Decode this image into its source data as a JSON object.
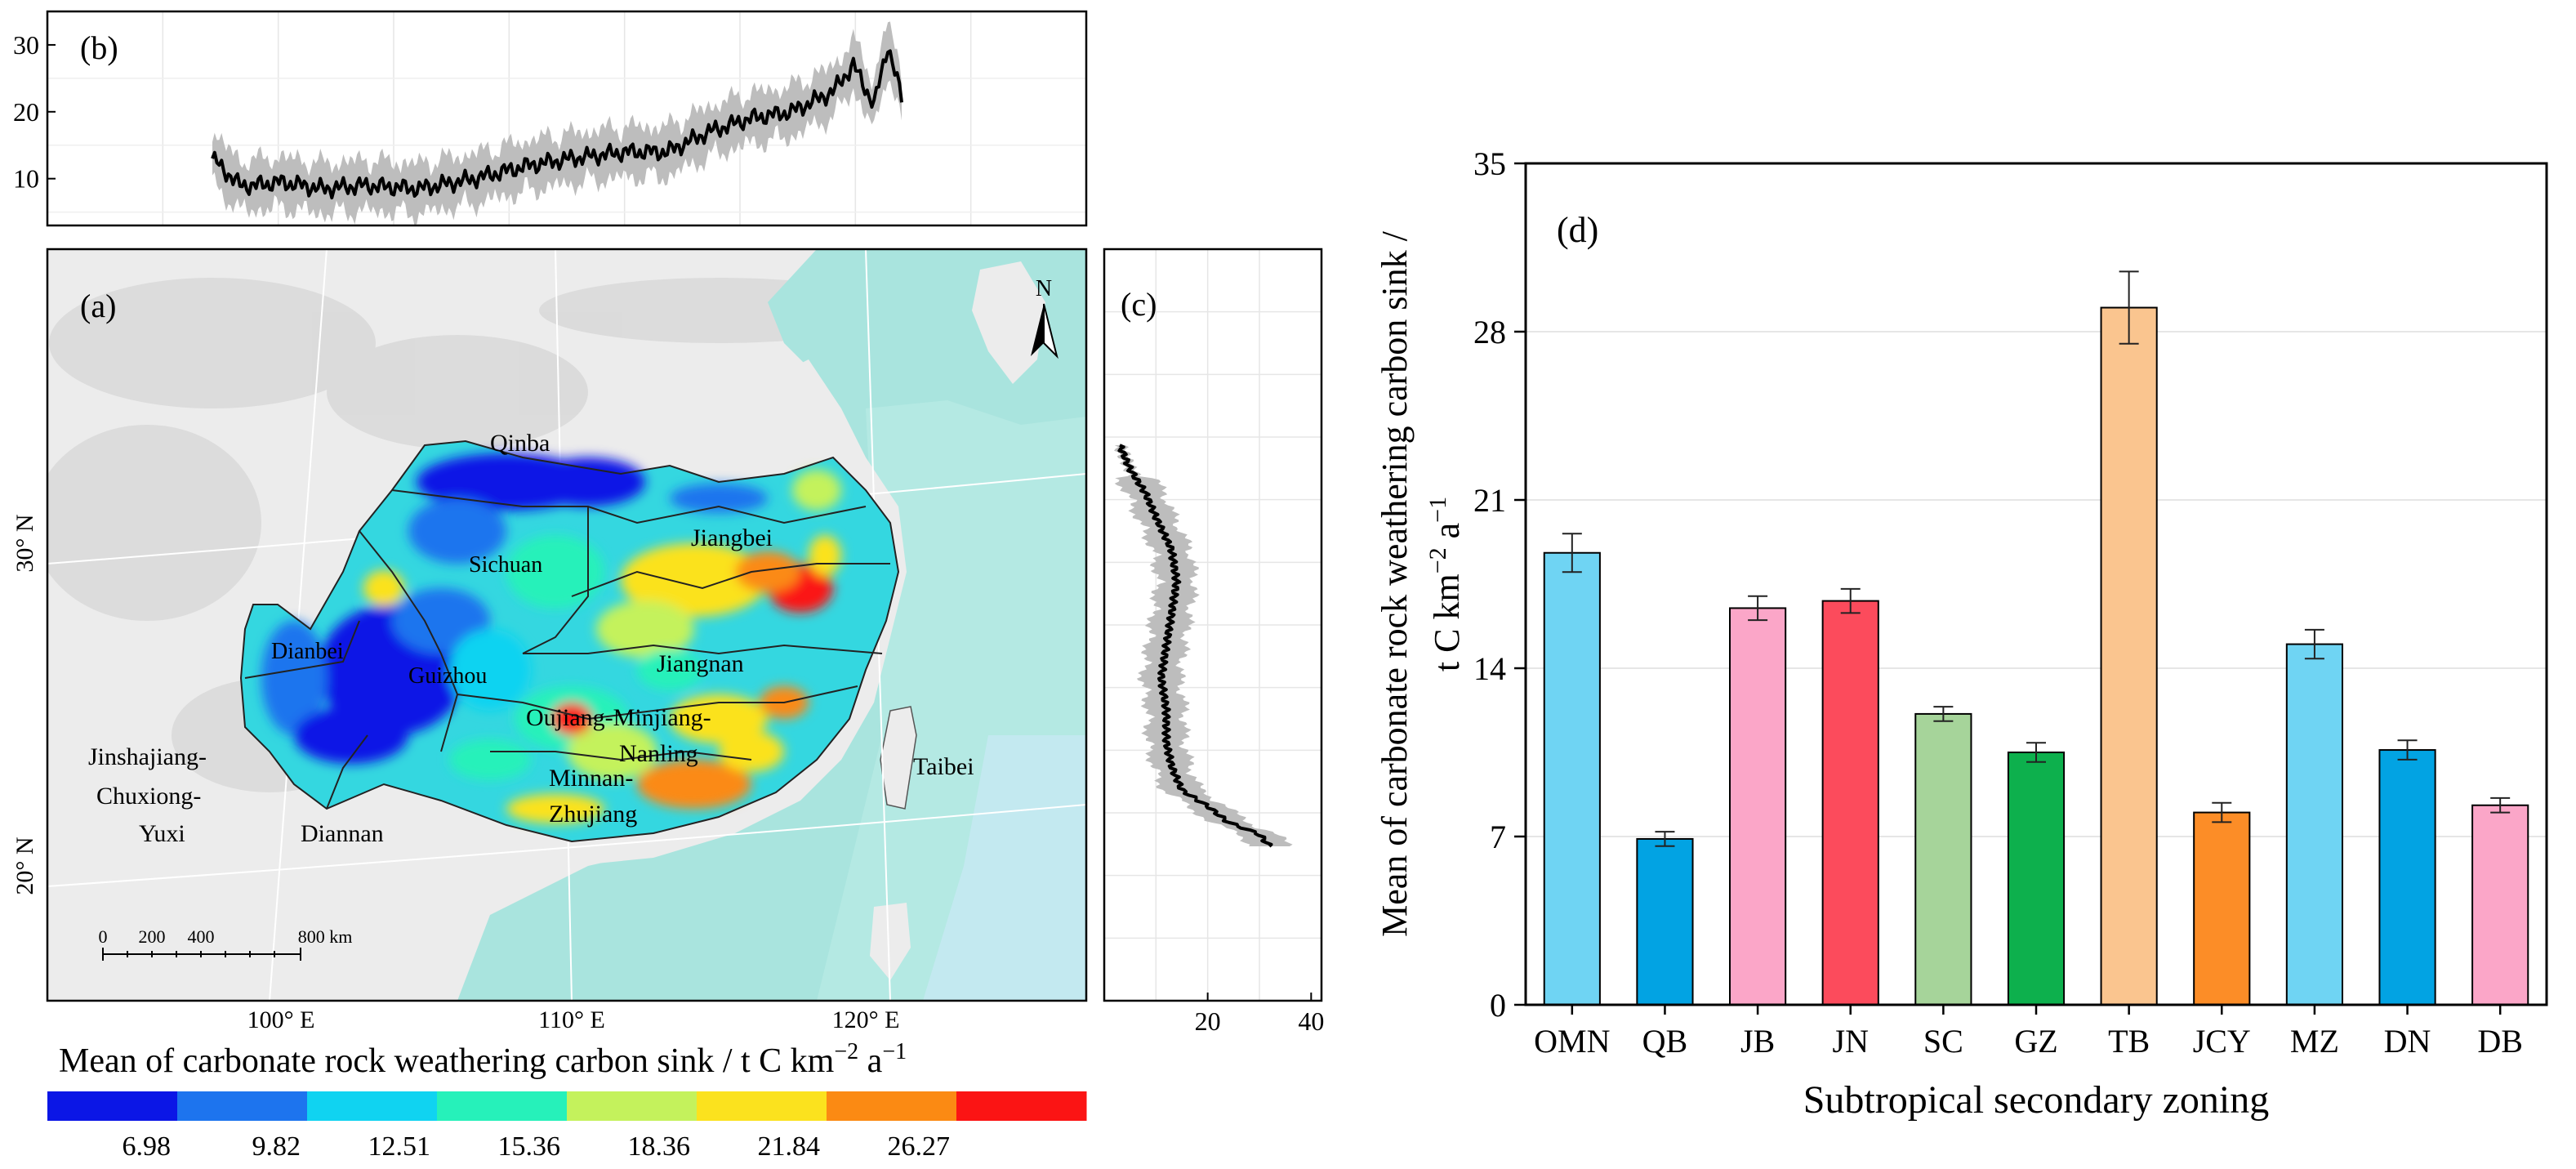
{
  "panel_b": {
    "label": "(b)",
    "yticks": [
      10,
      20,
      30
    ],
    "ylim": [
      3,
      35
    ]
  },
  "panel_a": {
    "label": "(a)",
    "north_label": "N",
    "lat_labels": [
      "30° N",
      "20° N"
    ],
    "lon_labels": [
      "100° E",
      "110° E",
      "120° E"
    ],
    "scale_bar": {
      "ticks": [
        "0",
        "200",
        "400",
        "800 km"
      ]
    },
    "regions": [
      "Qinba",
      "Jiangbei",
      "Sichuan",
      "Dianbei",
      "Guizhou",
      "Jiangnan",
      "Oujiang-Minjiang-",
      "Nanling",
      "Minnan-",
      "Zhujiang",
      "Jinshajiang-",
      "Chuxiong-",
      "Yuxi",
      "Diannan",
      "Taibei"
    ]
  },
  "panel_c": {
    "label": "(c)",
    "xticks": [
      20,
      40
    ],
    "xlim": [
      0,
      42
    ]
  },
  "legend": {
    "title_main": "Mean of carbonate rock weathering carbon sink /  t C km",
    "title_exp1": "−2",
    "title_mid": " a",
    "title_exp2": "−1",
    "colors": [
      "#0b16e6",
      "#1d74ee",
      "#10d3f1",
      "#26f1ba",
      "#c4f25c",
      "#fbe21e",
      "#fb8a13",
      "#fb1414"
    ],
    "breaks": [
      "6.98",
      "9.82",
      "12.51",
      "15.36",
      "18.36",
      "21.84",
      "26.27"
    ]
  },
  "chart_data": {
    "type": "bar",
    "panel_label": "(d)",
    "categories": [
      "OMN",
      "QB",
      "JB",
      "JN",
      "SC",
      "GZ",
      "TB",
      "JCY",
      "MZ",
      "DN",
      "DB"
    ],
    "values": [
      18.8,
      6.9,
      16.5,
      16.8,
      12.1,
      10.5,
      29.0,
      8.0,
      15.0,
      10.6,
      8.3
    ],
    "errors": [
      0.8,
      0.3,
      0.5,
      0.5,
      0.3,
      0.4,
      1.5,
      0.4,
      0.6,
      0.4,
      0.3
    ],
    "colors": [
      "#6fd4f3",
      "#02a3e3",
      "#fba6c8",
      "#fc4b5c",
      "#a6d49a",
      "#0db04d",
      "#fac58f",
      "#fc8d27",
      "#6fd4f3",
      "#02a3e3",
      "#fba6c8"
    ],
    "ylim": [
      0,
      35
    ],
    "yticks": [
      0,
      7,
      14,
      21,
      28,
      35
    ],
    "xlabel": "Subtropical secondary zoning",
    "ylabel_line1": "Mean of carbonate rock weathering carbon sink /",
    "ylabel_line2_main": "t C km",
    "ylabel_line2_exp1": "−2",
    "ylabel_line2_mid": " a",
    "ylabel_line2_exp2": "−1"
  }
}
